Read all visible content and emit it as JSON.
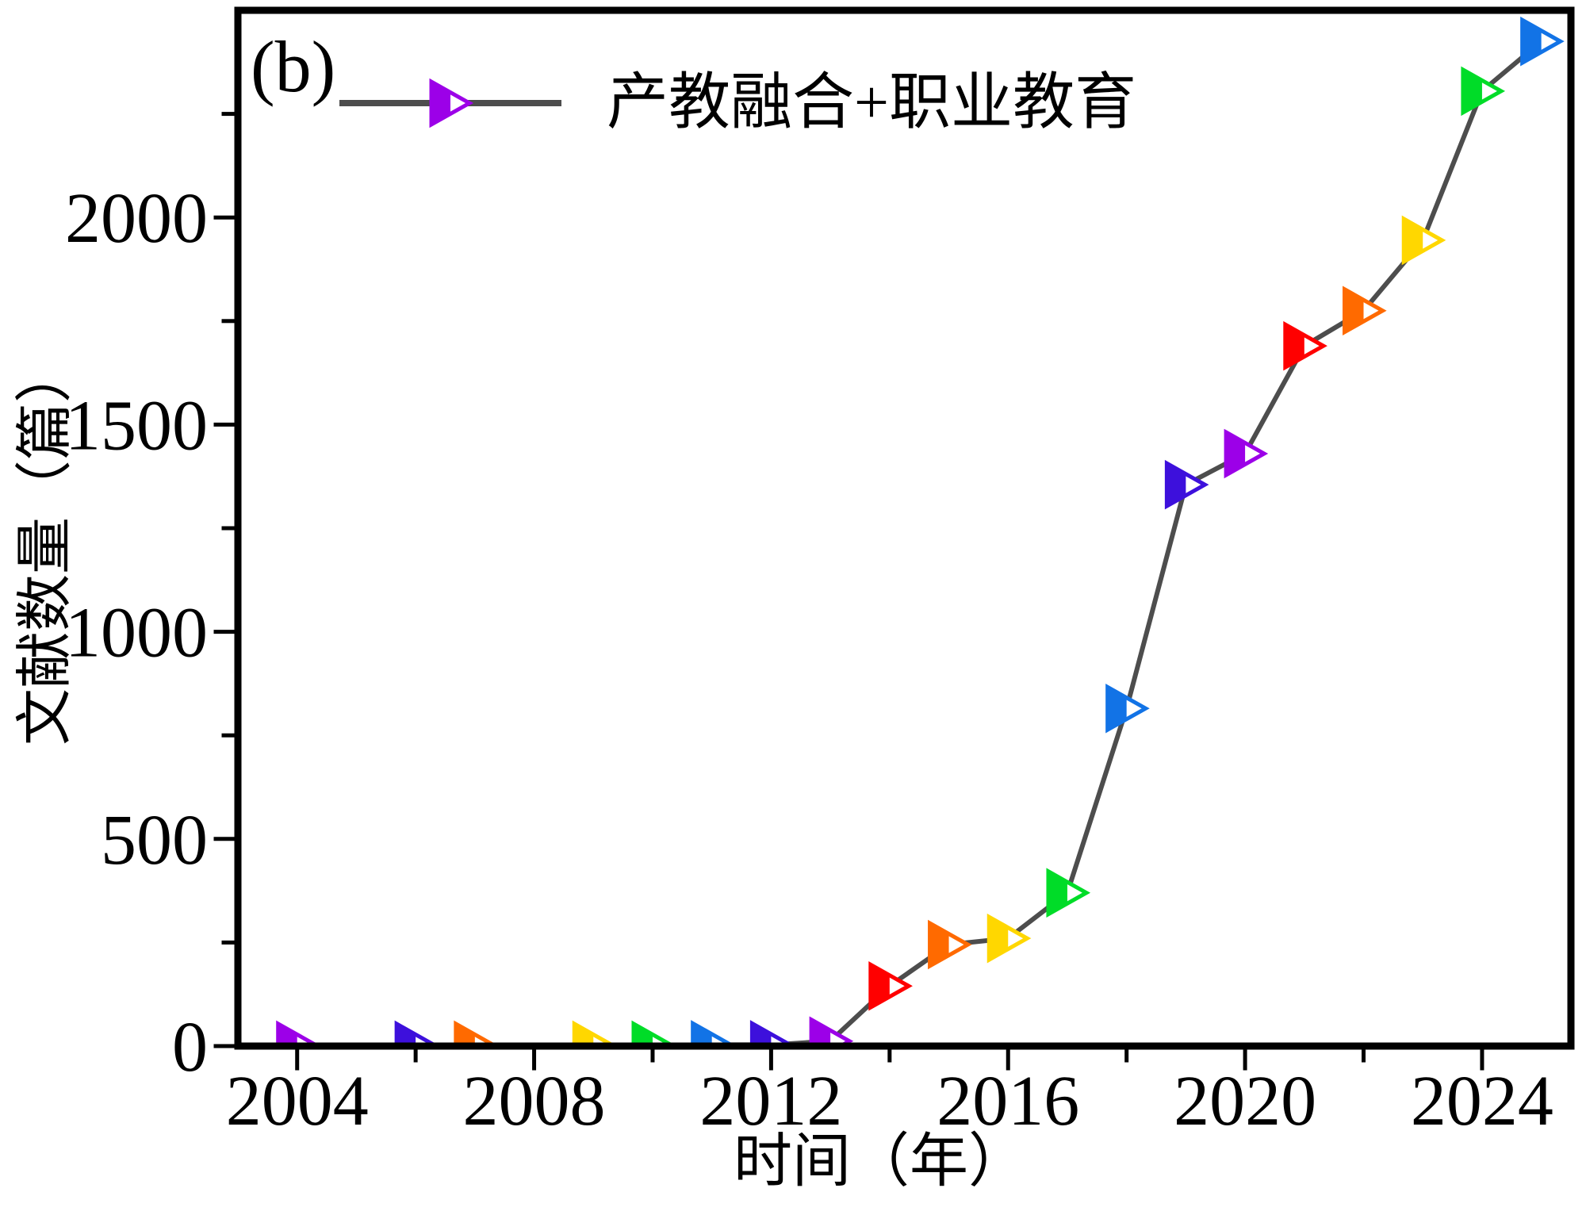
{
  "panel_label": "(b)",
  "legend": {
    "label": "产教融合+职业教育",
    "marker_color": "#9C00E8",
    "line_color": "#4D4D4D"
  },
  "axes": {
    "x_title": "时间（年）",
    "y_title": "文献数量（篇）",
    "x_major_tick_labels": [
      "2004",
      "2008",
      "2012",
      "2016",
      "2020",
      "2024"
    ],
    "x_major_ticks": [
      2004,
      2008,
      2012,
      2016,
      2020,
      2024
    ],
    "x_minor_ticks": [
      2006,
      2010,
      2014,
      2018,
      2022
    ],
    "y_major_tick_labels": [
      "0",
      "500",
      "1000",
      "1500",
      "2000"
    ],
    "y_major_ticks": [
      0,
      500,
      1000,
      1500,
      2000
    ],
    "y_minor_ticks": [
      250,
      750,
      1250,
      1750,
      2250
    ],
    "frame_color": "#000000"
  },
  "chart_data": {
    "type": "line",
    "title": "",
    "xlabel": "时间（年）",
    "ylabel": "文献数量（篇）",
    "xlim": [
      2003,
      2025.5
    ],
    "ylim": [
      0,
      2500
    ],
    "grid": false,
    "legend_position": "inside-top-left",
    "marker": "right-triangle-left-half-filled",
    "series": [
      {
        "name": "产教融合+职业教育",
        "x": [
          2004,
          2006,
          2007,
          2009,
          2010,
          2011,
          2012,
          2013,
          2014,
          2015,
          2016,
          2017,
          2018,
          2019,
          2020,
          2021,
          2022,
          2023,
          2024,
          2025
        ],
        "values": [
          2,
          2,
          2,
          2,
          2,
          3,
          3,
          12,
          145,
          245,
          260,
          370,
          815,
          1355,
          1430,
          1690,
          1775,
          1945,
          2305,
          2425
        ],
        "line_color": "#4D4D4D",
        "marker_colors": [
          "#9C00E8",
          "#3D10DC",
          "#FF6A00",
          "#FFD700",
          "#00DC28",
          "#1273E6",
          "#3D10DC",
          "#9C00E8",
          "#FF0000",
          "#FF6A00",
          "#FFD700",
          "#00DC28",
          "#1273E6",
          "#3D10DC",
          "#9C00E8",
          "#FF0000",
          "#FF6A00",
          "#FFD700",
          "#00DC28",
          "#1273E6"
        ]
      }
    ]
  }
}
